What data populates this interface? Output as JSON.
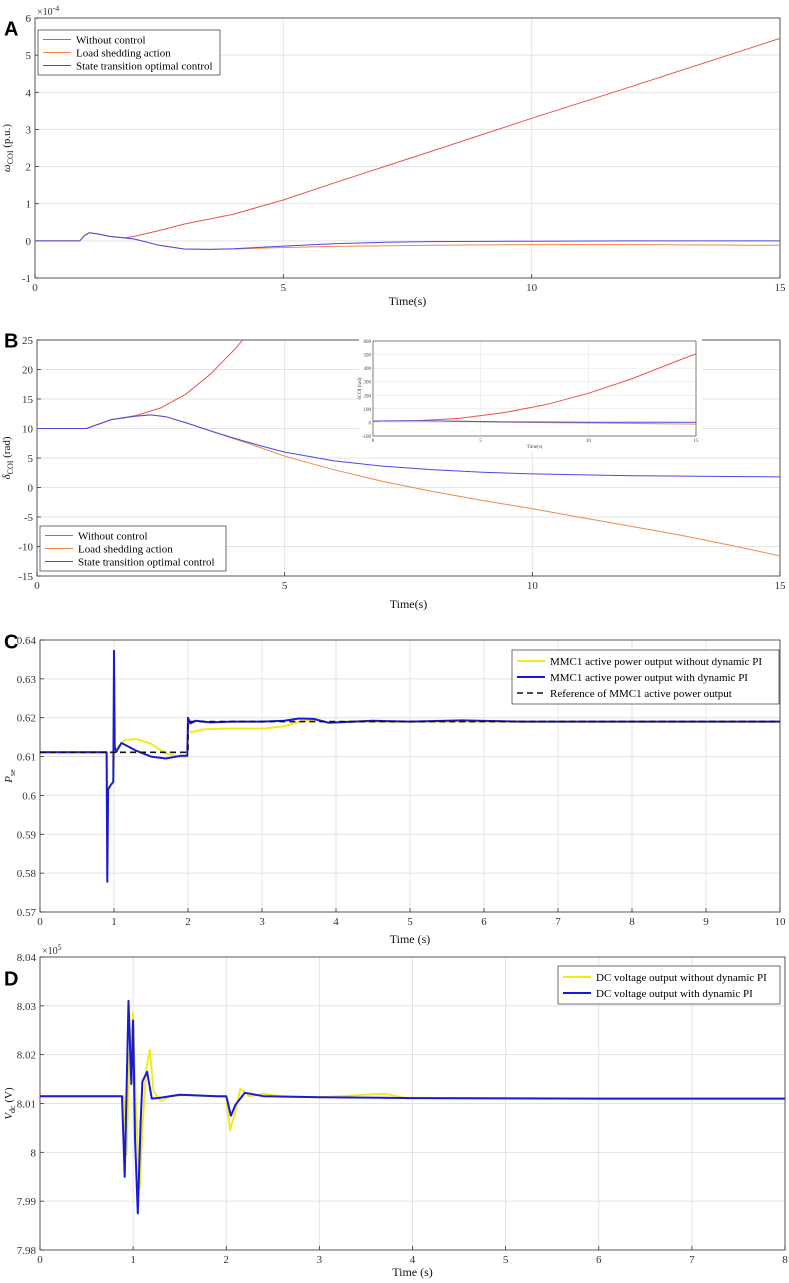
{
  "chart_data": [
    {
      "panel": "A",
      "type": "line",
      "xlabel": "Time(s)",
      "ylabel": "ωCOI (p.u.)",
      "ylabel_main": "ω",
      "ylabel_sub": "COI",
      "ylabel_unit": " (p.u.)",
      "exponent": "×10-4",
      "exponent_base": "×10",
      "exponent_power": "-4",
      "xlim": [
        0,
        15
      ],
      "ylim": [
        -1,
        6
      ],
      "xticks": [
        0,
        5,
        10,
        15
      ],
      "yticks": [
        -1,
        0,
        1,
        2,
        3,
        4,
        5,
        6
      ],
      "legend_position": "top-left",
      "series": [
        {
          "name": "Without control",
          "color": "#e8544c",
          "width": 1,
          "x": [
            0,
            0.9,
            1.0,
            1.1,
            1.3,
            1.5,
            1.8,
            2.0,
            2.5,
            3.0,
            4.0,
            5.0,
            6.0,
            8.0,
            10.0,
            12.0,
            15.0
          ],
          "y": [
            0,
            0,
            0.15,
            0.22,
            0.18,
            0.12,
            0.08,
            0.12,
            0.28,
            0.45,
            0.72,
            1.1,
            1.55,
            2.42,
            3.3,
            4.15,
            5.45
          ]
        },
        {
          "name": "Load shedding action",
          "color": "#f08a4b",
          "width": 1,
          "x": [
            0,
            0.9,
            1.0,
            1.1,
            1.3,
            1.5,
            1.8,
            2.0,
            2.5,
            3.0,
            3.5,
            4.0,
            5.0,
            6.0,
            8.0,
            10.0,
            12.0,
            15.0
          ],
          "y": [
            0,
            0,
            0.15,
            0.22,
            0.18,
            0.12,
            0.08,
            0.05,
            -0.12,
            -0.22,
            -0.23,
            -0.22,
            -0.18,
            -0.15,
            -0.12,
            -0.1,
            -0.1,
            -0.12
          ]
        },
        {
          "name": "State transition optimal control",
          "color": "#4a4ae6",
          "width": 1,
          "x": [
            0,
            0.9,
            1.0,
            1.1,
            1.3,
            1.5,
            1.8,
            2.0,
            2.5,
            3.0,
            3.5,
            4.0,
            5.0,
            6.0,
            7.0,
            8.0,
            10.0,
            12.0,
            15.0
          ],
          "y": [
            0,
            0,
            0.15,
            0.22,
            0.18,
            0.12,
            0.08,
            0.05,
            -0.12,
            -0.22,
            -0.23,
            -0.21,
            -0.14,
            -0.08,
            -0.04,
            -0.02,
            -0.01,
            0,
            0
          ]
        }
      ]
    },
    {
      "panel": "B",
      "type": "line",
      "xlabel": "Time(s)",
      "ylabel": "δCOI (rad)",
      "ylabel_main": "δ",
      "ylabel_sub": "COI",
      "ylabel_unit": " (rad)",
      "xlim": [
        0,
        15
      ],
      "ylim": [
        -15,
        25
      ],
      "xticks": [
        0,
        5,
        10,
        15
      ],
      "yticks": [
        -15,
        -10,
        -5,
        0,
        5,
        10,
        15,
        20,
        25
      ],
      "legend_position": "bottom-left",
      "series": [
        {
          "name": "Without control",
          "color": "#e8544c",
          "width": 1,
          "x": [
            0,
            1.0,
            1.5,
            2.0,
            2.5,
            3.0,
            3.5,
            4.0,
            4.3
          ],
          "y": [
            10,
            10,
            11.5,
            12.2,
            13.5,
            15.8,
            19.2,
            23.5,
            26.5
          ]
        },
        {
          "name": "Load shedding action",
          "color": "#f08a4b",
          "width": 1,
          "x": [
            0,
            1.0,
            1.5,
            2.0,
            2.3,
            2.6,
            3.0,
            3.5,
            4.0,
            4.5,
            5.0,
            6.0,
            7.0,
            8.0,
            9.0,
            10.0,
            11.0,
            12.0,
            13.0,
            14.0,
            15.0
          ],
          "y": [
            10,
            10,
            11.5,
            12.1,
            12.3,
            12.0,
            11.0,
            9.6,
            8.2,
            6.8,
            5.3,
            3.0,
            1.0,
            -0.7,
            -2.2,
            -3.6,
            -5.1,
            -6.6,
            -8.1,
            -9.8,
            -11.6
          ]
        },
        {
          "name": "State transition optimal control",
          "color": "#4a4ae6",
          "width": 1,
          "x": [
            0,
            1.0,
            1.5,
            2.0,
            2.3,
            2.6,
            3.0,
            3.5,
            4.0,
            4.5,
            5.0,
            6.0,
            7.0,
            8.0,
            9.0,
            10.0,
            12.0,
            15.0
          ],
          "y": [
            10,
            10,
            11.5,
            12.1,
            12.3,
            12.0,
            11.0,
            9.6,
            8.3,
            7.1,
            6.0,
            4.5,
            3.6,
            3.0,
            2.6,
            2.3,
            2.0,
            1.8
          ]
        }
      ],
      "inset": {
        "xlim": [
          0,
          15
        ],
        "ylim": [
          -100,
          600
        ],
        "xticks": [
          0,
          5,
          10,
          15
        ],
        "yticks": [
          -100,
          0,
          100,
          200,
          300,
          400,
          500,
          600
        ],
        "xlabel": "Time(s)",
        "ylabel": "δCOI (rad)",
        "series": [
          {
            "name": "Without control",
            "color": "#e8544c",
            "width": 1,
            "x": [
              0,
              2,
              4,
              6,
              8,
              10,
              12,
              14,
              15
            ],
            "y": [
              10,
              12,
              30,
              70,
              130,
              215,
              320,
              445,
              505
            ]
          },
          {
            "name": "Load shedding action",
            "color": "#f08a4b",
            "width": 1,
            "x": [
              0,
              2,
              4,
              6,
              8,
              10,
              12,
              15
            ],
            "y": [
              10,
              12,
              8,
              3,
              -1,
              -4,
              -7,
              -12
            ]
          },
          {
            "name": "State transition optimal control",
            "color": "#4a4ae6",
            "width": 1,
            "x": [
              0,
              2,
              4,
              6,
              8,
              10,
              15
            ],
            "y": [
              10,
              12,
              8,
              4,
              3,
              2,
              2
            ]
          }
        ]
      }
    },
    {
      "panel": "C",
      "type": "line",
      "xlabel": "Time (s)",
      "ylabel": "Pse",
      "ylabel_main": "P",
      "ylabel_sub": "se",
      "ylabel_unit": "",
      "xlim": [
        0,
        10
      ],
      "ylim": [
        0.57,
        0.64
      ],
      "xticks": [
        0,
        1,
        2,
        3,
        4,
        5,
        6,
        7,
        8,
        9,
        10
      ],
      "yticks": [
        0.57,
        0.58,
        0.59,
        0.6,
        0.61,
        0.62,
        0.63,
        0.64
      ],
      "legend_position": "top-right",
      "series": [
        {
          "name": "MMC1 active power output without dynamic PI",
          "color": "#f2ea1c",
          "width": 2,
          "x": [
            0,
            0.9,
            0.91,
            0.95,
            0.99,
            1.0,
            1.05,
            1.15,
            1.3,
            1.5,
            1.7,
            1.9,
            1.99,
            2.0,
            2.05,
            2.2,
            2.5,
            3.0,
            3.3,
            3.5,
            3.7,
            3.9,
            4.2,
            5.0,
            6.0,
            7.0,
            8.0,
            9.0,
            10.0
          ],
          "y": [
            0.6111,
            0.6111,
            0.6015,
            0.6025,
            0.6035,
            0.6111,
            0.6125,
            0.6143,
            0.6145,
            0.6133,
            0.6108,
            0.6098,
            0.6098,
            0.6165,
            0.6163,
            0.617,
            0.6172,
            0.6172,
            0.6178,
            0.619,
            0.6195,
            0.6188,
            0.619,
            0.619,
            0.619,
            0.619,
            0.619,
            0.619,
            0.619
          ]
        },
        {
          "name": "MMC1 active power output with dynamic PI",
          "color": "#1a1ad6",
          "width": 2,
          "x": [
            0,
            0.9,
            0.91,
            0.92,
            0.95,
            0.99,
            1.0,
            1.01,
            1.03,
            1.1,
            1.3,
            1.5,
            1.7,
            1.9,
            1.99,
            2.0,
            2.03,
            2.1,
            2.3,
            2.6,
            3.0,
            3.3,
            3.5,
            3.7,
            3.9,
            4.5,
            5.0,
            5.7,
            6.5,
            7.0,
            8.0,
            9.0,
            10.0
          ],
          "y": [
            0.6111,
            0.6111,
            0.5778,
            0.6015,
            0.6025,
            0.6035,
            0.6372,
            0.6125,
            0.6112,
            0.6135,
            0.6115,
            0.61,
            0.6095,
            0.6102,
            0.6102,
            0.62,
            0.6185,
            0.6192,
            0.6188,
            0.619,
            0.619,
            0.6192,
            0.6198,
            0.6197,
            0.6187,
            0.6192,
            0.619,
            0.6193,
            0.619,
            0.619,
            0.619,
            0.619,
            0.619
          ]
        },
        {
          "name": "Reference of MMC1 active power output",
          "color": "#111111",
          "width": 1.6,
          "dash": "6,4",
          "x": [
            0,
            2.0,
            2.0,
            10.0
          ],
          "y": [
            0.6111,
            0.6111,
            0.619,
            0.619
          ]
        }
      ]
    },
    {
      "panel": "D",
      "type": "line",
      "xlabel": "Time (s)",
      "ylabel": "Vdc (V)",
      "ylabel_main": "V",
      "ylabel_sub": "dc",
      "ylabel_unit": " (V)",
      "exponent": "×105",
      "exponent_base": "×10",
      "exponent_power": "5",
      "xlim": [
        0,
        8
      ],
      "ylim": [
        7.98,
        8.04
      ],
      "xticks": [
        0,
        1,
        2,
        3,
        4,
        5,
        6,
        7,
        8
      ],
      "yticks": [
        7.98,
        7.99,
        8.0,
        8.01,
        8.02,
        8.03,
        8.04
      ],
      "legend_position": "top-right",
      "series": [
        {
          "name": "DC voltage output without dynamic PI",
          "color": "#f2ea1c",
          "width": 2,
          "x": [
            0,
            0.9,
            0.93,
            0.96,
            1.0,
            1.03,
            1.07,
            1.1,
            1.14,
            1.18,
            1.22,
            1.3,
            1.4,
            1.6,
            1.9,
            2.0,
            2.04,
            2.1,
            2.15,
            2.25,
            2.4,
            2.6,
            3.0,
            3.5,
            3.7,
            3.9,
            4.5,
            6.0,
            8.0
          ],
          "y": [
            8.0115,
            8.0115,
            7.9995,
            8.02,
            8.0285,
            8.009,
            7.9925,
            8.005,
            8.017,
            8.021,
            8.0125,
            8.0105,
            8.0115,
            8.0118,
            8.0115,
            8.0112,
            8.0045,
            8.0085,
            8.013,
            8.0115,
            8.012,
            8.0115,
            8.0113,
            8.0118,
            8.012,
            8.0112,
            8.0111,
            8.011,
            8.011
          ]
        },
        {
          "name": "DC voltage output with dynamic PI",
          "color": "#1a1ad6",
          "width": 2,
          "x": [
            0,
            0.88,
            0.91,
            0.95,
            0.98,
            1.0,
            1.02,
            1.05,
            1.08,
            1.1,
            1.15,
            1.2,
            1.3,
            1.5,
            1.9,
            2.0,
            2.05,
            2.1,
            2.2,
            2.4,
            3.0,
            4.0,
            6.0,
            8.0
          ],
          "y": [
            8.0115,
            8.0115,
            7.995,
            8.031,
            8.014,
            8.027,
            8.003,
            7.9875,
            8.006,
            8.0145,
            8.0165,
            8.011,
            8.0112,
            8.0118,
            8.0115,
            8.0115,
            8.0075,
            8.0098,
            8.0122,
            8.0115,
            8.0113,
            8.0111,
            8.011,
            8.011
          ]
        }
      ]
    }
  ]
}
